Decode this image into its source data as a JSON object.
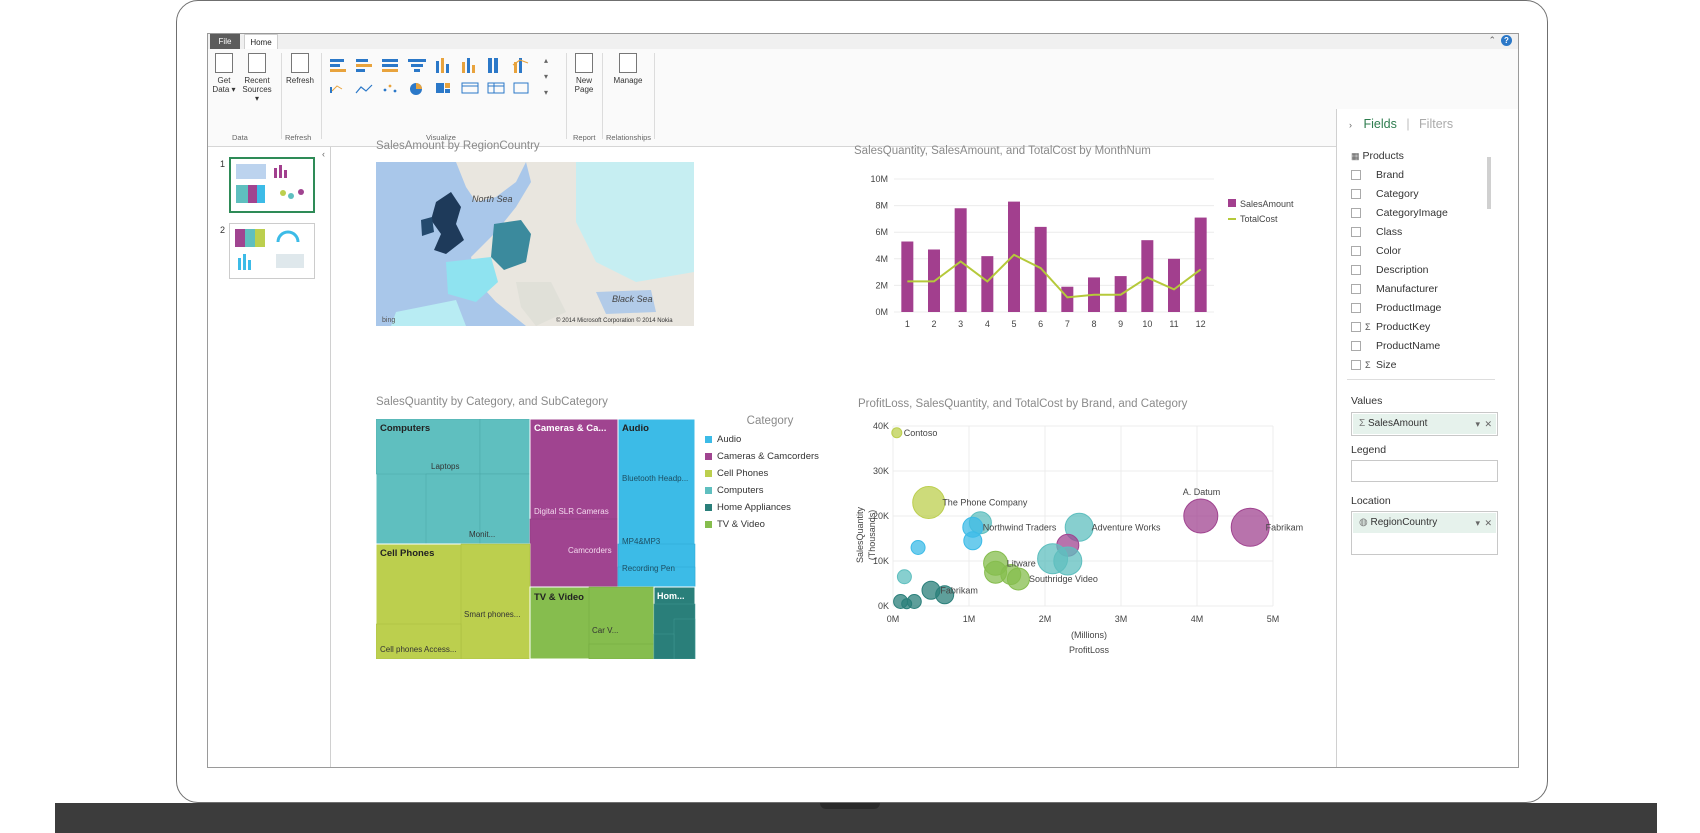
{
  "ribbon": {
    "tabs": {
      "file": "File",
      "home": "Home"
    },
    "buttons": {
      "get_data": "Get Data ▾",
      "recent_sources": "Recent Sources ▾",
      "refresh": "Refresh",
      "new_page": "New Page",
      "manage": "Manage"
    },
    "groups": {
      "data": "Data",
      "refresh": "Refresh",
      "visualize": "Visualize",
      "report": "Report",
      "relationships": "Relationships"
    }
  },
  "pages": {
    "items": [
      "1",
      "2"
    ],
    "selected": "1"
  },
  "map": {
    "title": "SalesAmount by RegionCountry",
    "labels": {
      "north_sea": "North Sea",
      "black_sea": "Black Sea",
      "bing": "bing"
    },
    "copyright": "© 2014 Microsoft Corporation  © 2014 Nokia"
  },
  "column_chart": {
    "title": "SalesQuantity, SalesAmount, and TotalCost by MonthNum",
    "legend": [
      "SalesAmount",
      "TotalCost"
    ]
  },
  "treemap": {
    "title": "SalesQuantity by Category, and SubCategory",
    "legend_title": "Category",
    "legend": [
      "Audio",
      "Cameras & Camcorders",
      "Cell Phones",
      "Computers",
      "Home Appliances",
      "TV & Video"
    ],
    "labels": {
      "computers": "Computers",
      "laptops": "Laptops",
      "monitors": "Monit...",
      "cameras": "Cameras & Ca...",
      "dslr": "Digital SLR Cameras",
      "camcorders": "Camcorders",
      "audio": "Audio",
      "bluetooth": "Bluetooth Headp...",
      "mp4": "MP4&MP3",
      "recording": "Recording Pen",
      "cell": "Cell Phones",
      "smart": "Smart phones...",
      "cell_acc": "Cell phones Access...",
      "tv": "TV & Video",
      "car": "Car V...",
      "home": "Hom..."
    }
  },
  "scatter": {
    "title": "ProfitLoss, SalesQuantity, and TotalCost by Brand, and Category",
    "ylabel": "SalesQuantity",
    "yunit": "(Thousands)",
    "xunit": "(Millions)",
    "xlabel": "ProfitLoss",
    "point_labels": [
      "Contoso",
      "The Phone Company",
      "Northwind Traders",
      "Adventure Works",
      "Litware",
      "Fabrikam",
      "Southridge Video",
      "A. Datum",
      "Fabrikam"
    ]
  },
  "fields": {
    "header": "Fields",
    "filters": "Filters",
    "table": "Products",
    "items": [
      "Brand",
      "Category",
      "CategoryImage",
      "Class",
      "Color",
      "Description",
      "Manufacturer",
      "ProductImage",
      "ProductKey",
      "ProductName",
      "Size"
    ],
    "wells": {
      "values_label": "Values",
      "values_field": "SalesAmount",
      "legend_label": "Legend",
      "location_label": "Location",
      "location_field": "RegionCountry"
    }
  },
  "colors": {
    "salesamount": "#a23f8e",
    "totalcost": "#b5c93a",
    "audio": "#3cbbe7",
    "cameras": "#a04490",
    "cell": "#bccf4e",
    "computers": "#5fbfbf",
    "home": "#2a7f7a",
    "tv": "#86bd4e"
  },
  "chart_data": [
    {
      "type": "bar",
      "title": "SalesQuantity, SalesAmount, and TotalCost by MonthNum",
      "categories": [
        "1",
        "2",
        "3",
        "4",
        "5",
        "6",
        "7",
        "8",
        "9",
        "10",
        "11",
        "12"
      ],
      "series": [
        {
          "name": "SalesAmount",
          "type": "bar",
          "values": [
            5.3,
            4.7,
            7.8,
            4.2,
            8.3,
            6.4,
            1.9,
            2.6,
            2.7,
            5.4,
            4.0,
            7.1
          ]
        },
        {
          "name": "TotalCost",
          "type": "line",
          "values": [
            2.3,
            2.3,
            3.8,
            2.3,
            4.3,
            3.3,
            1.1,
            1.3,
            1.3,
            2.6,
            1.7,
            3.2
          ]
        }
      ],
      "yticks": [
        "0M",
        "2M",
        "4M",
        "6M",
        "8M",
        "10M"
      ],
      "ylim": [
        0,
        10
      ],
      "legend": "top-right"
    },
    {
      "type": "scatter",
      "title": "ProfitLoss, SalesQuantity, and TotalCost by Brand, and Category",
      "xlabel": "ProfitLoss",
      "ylabel": "SalesQuantity",
      "xlim": [
        0,
        5
      ],
      "ylim": [
        0,
        40
      ],
      "xticks": [
        "0M",
        "1M",
        "2M",
        "3M",
        "4M",
        "5M"
      ],
      "yticks": [
        "0K",
        "10K",
        "20K",
        "30K",
        "40K"
      ],
      "points": [
        {
          "x": 0.05,
          "y": 38.5,
          "r": 5,
          "category": "cell",
          "label": "Contoso"
        },
        {
          "x": 0.47,
          "y": 23,
          "r": 16,
          "category": "cell",
          "label": "The Phone Company"
        },
        {
          "x": 1.15,
          "y": 18.5,
          "r": 11,
          "category": "computers"
        },
        {
          "x": 1.05,
          "y": 17.5,
          "r": 10,
          "category": "audio",
          "label": "Northwind Traders"
        },
        {
          "x": 1.05,
          "y": 14.5,
          "r": 9,
          "category": "audio"
        },
        {
          "x": 0.33,
          "y": 13,
          "r": 7,
          "category": "audio"
        },
        {
          "x": 2.45,
          "y": 17.5,
          "r": 14,
          "category": "computers",
          "label": "Adventure Works"
        },
        {
          "x": 2.3,
          "y": 13.5,
          "r": 11,
          "category": "cameras"
        },
        {
          "x": 2.1,
          "y": 10.5,
          "r": 15,
          "category": "computers"
        },
        {
          "x": 2.3,
          "y": 10,
          "r": 14,
          "category": "computers"
        },
        {
          "x": 1.35,
          "y": 9.5,
          "r": 12,
          "category": "tv",
          "label": "Litware"
        },
        {
          "x": 1.35,
          "y": 7.5,
          "r": 11,
          "category": "tv"
        },
        {
          "x": 1.55,
          "y": 7,
          "r": 10,
          "category": "tv"
        },
        {
          "x": 1.65,
          "y": 6,
          "r": 11,
          "category": "tv",
          "label": "Southridge Video"
        },
        {
          "x": 0.15,
          "y": 6.5,
          "r": 7,
          "category": "computers"
        },
        {
          "x": 0.5,
          "y": 3.5,
          "r": 9,
          "category": "home",
          "label": "Fabrikam"
        },
        {
          "x": 0.68,
          "y": 2.5,
          "r": 9,
          "category": "home"
        },
        {
          "x": 0.1,
          "y": 1,
          "r": 7,
          "category": "home"
        },
        {
          "x": 0.28,
          "y": 1,
          "r": 7,
          "category": "home"
        },
        {
          "x": 0.18,
          "y": 0.5,
          "r": 5,
          "category": "home"
        },
        {
          "x": 4.05,
          "y": 20,
          "r": 17,
          "category": "cameras",
          "label": "A. Datum"
        },
        {
          "x": 4.7,
          "y": 17.5,
          "r": 19,
          "category": "cameras",
          "label": "Fabrikam"
        }
      ]
    }
  ]
}
